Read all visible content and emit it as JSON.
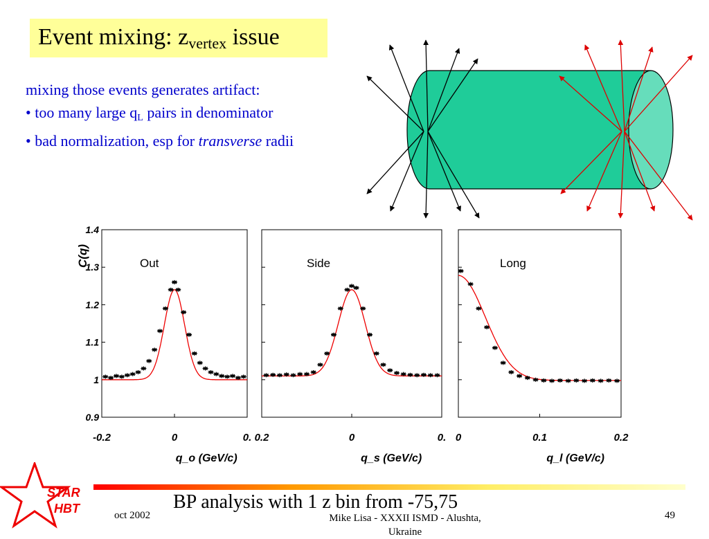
{
  "slide": {
    "title_main": "Event mixing: z",
    "title_sub": "vertex",
    "title_end": " issue",
    "bullet_intro": "mixing those events generates artifact:",
    "bullet1_a": "• too many large q",
    "bullet1_sub": "L",
    "bullet1_b": " pairs in denominator",
    "bullet2_a": "• bad normalization, esp for ",
    "bullet2_ital": "transverse",
    "bullet2_b": " radii",
    "colors": {
      "title_bg": "#ffff99",
      "bullet_text": "#0000cc",
      "cylinder": "#1fcc99",
      "cylinder_end": "#66ddbb",
      "tracks_left": "#000000",
      "tracks_right": "#dd0000"
    }
  },
  "footer": {
    "date": "oct 2002",
    "overlay": "BP analysis with 1 z bin from -75,75",
    "author": "Mike Lisa - XXXII ISMD - Alushta,",
    "author2": "Ukraine",
    "page": "49",
    "logo_line1": "STAR",
    "logo_line2": "HBT"
  },
  "chart_data": [
    {
      "type": "scatter",
      "panel_label": "Out",
      "xlabel": "q_o (GeV/c)",
      "ylabel": "C(q)",
      "xlim": [
        -0.2,
        0.2
      ],
      "ylim": [
        0.9,
        1.4
      ],
      "x_ticks": [
        "-0.2",
        "0",
        "0."
      ],
      "y_ticks": [
        "0.9",
        "1",
        "1.1",
        "1.2",
        "1.3",
        "1.4"
      ],
      "series": [
        {
          "kind": "points",
          "x": [
            -0.19,
            -0.175,
            -0.16,
            -0.145,
            -0.13,
            -0.115,
            -0.1,
            -0.085,
            -0.07,
            -0.055,
            -0.04,
            -0.025,
            -0.01,
            0.0,
            0.01,
            0.025,
            0.04,
            0.055,
            0.07,
            0.085,
            0.1,
            0.115,
            0.13,
            0.145,
            0.16,
            0.175,
            0.19
          ],
          "y": [
            1.008,
            1.005,
            1.01,
            1.008,
            1.012,
            1.015,
            1.02,
            1.03,
            1.05,
            1.08,
            1.13,
            1.19,
            1.24,
            1.26,
            1.24,
            1.18,
            1.12,
            1.07,
            1.045,
            1.03,
            1.02,
            1.015,
            1.01,
            1.008,
            1.01,
            1.005,
            1.008
          ]
        },
        {
          "kind": "fit",
          "amplitude": 0.24,
          "sigma": 0.028,
          "baseline": 1.0
        }
      ]
    },
    {
      "type": "scatter",
      "panel_label": "Side",
      "xlabel": "q_s (GeV/c)",
      "ylabel": "",
      "xlim": [
        -0.2,
        0.2
      ],
      "ylim": [
        0.9,
        1.4
      ],
      "x_ticks": [
        "0.2",
        "0",
        "0."
      ],
      "y_ticks": [],
      "series": [
        {
          "kind": "points",
          "x": [
            -0.19,
            -0.175,
            -0.16,
            -0.145,
            -0.13,
            -0.115,
            -0.1,
            -0.085,
            -0.07,
            -0.055,
            -0.04,
            -0.025,
            -0.01,
            0.0,
            0.01,
            0.025,
            0.04,
            0.055,
            0.07,
            0.085,
            0.1,
            0.115,
            0.13,
            0.145,
            0.16,
            0.175,
            0.19
          ],
          "y": [
            1.012,
            1.013,
            1.012,
            1.014,
            1.012,
            1.015,
            1.015,
            1.02,
            1.04,
            1.07,
            1.12,
            1.19,
            1.24,
            1.25,
            1.245,
            1.19,
            1.12,
            1.07,
            1.04,
            1.025,
            1.018,
            1.015,
            1.013,
            1.012,
            1.013,
            1.012,
            1.012
          ]
        },
        {
          "kind": "fit",
          "amplitude": 0.23,
          "sigma": 0.03,
          "baseline": 1.01
        }
      ]
    },
    {
      "type": "scatter",
      "panel_label": "Long",
      "xlabel": "q_l (GeV/c)",
      "ylabel": "",
      "xlim": [
        0,
        0.2
      ],
      "ylim": [
        0.9,
        1.4
      ],
      "x_ticks": [
        "0",
        "0.1",
        "0.2"
      ],
      "y_ticks": [],
      "series": [
        {
          "kind": "points",
          "x": [
            0.003,
            0.015,
            0.025,
            0.035,
            0.045,
            0.055,
            0.065,
            0.075,
            0.085,
            0.095,
            0.105,
            0.115,
            0.125,
            0.135,
            0.145,
            0.155,
            0.165,
            0.175,
            0.185,
            0.195
          ],
          "y": [
            1.29,
            1.255,
            1.19,
            1.14,
            1.085,
            1.045,
            1.02,
            1.01,
            1.005,
            1.0,
            0.998,
            0.997,
            0.998,
            0.997,
            0.998,
            0.997,
            0.998,
            0.997,
            0.998,
            0.997
          ]
        },
        {
          "kind": "fit",
          "amplitude": 0.28,
          "sigma": 0.033,
          "baseline": 0.998
        }
      ]
    }
  ]
}
